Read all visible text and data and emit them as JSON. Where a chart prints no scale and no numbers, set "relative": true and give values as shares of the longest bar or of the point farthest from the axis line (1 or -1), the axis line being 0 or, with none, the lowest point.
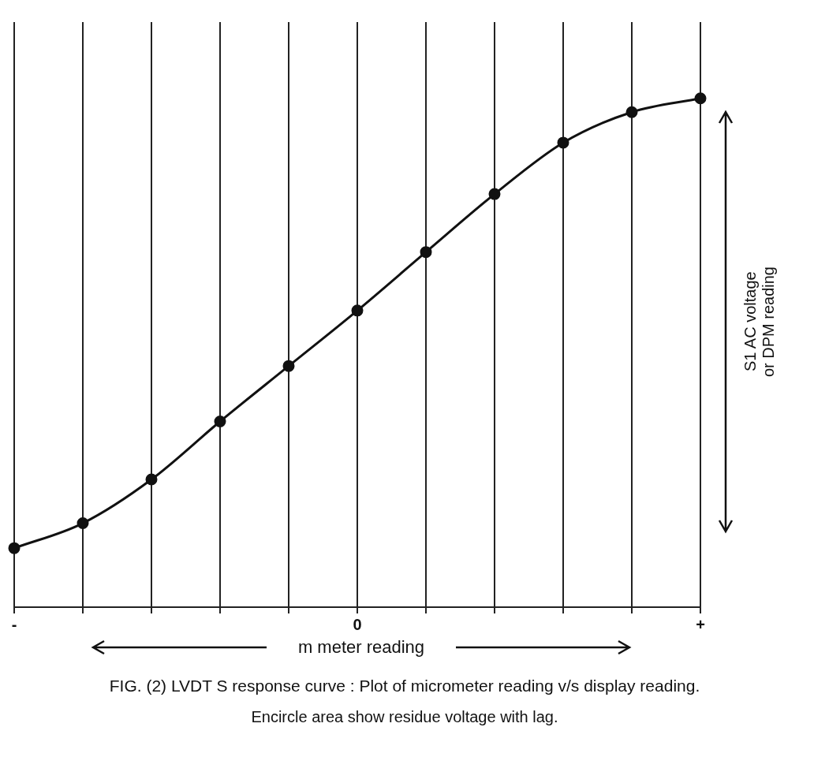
{
  "chart_data": {
    "type": "line",
    "title": "FIG. (2) LVDT S response curve : Plot of micrometer reading v/s display reading.",
    "xlabel": "m meter reading",
    "ylabel": "S1 AC voltage\nor DPM reading",
    "annotations": [
      "Encircle area show residue voltage with lag."
    ],
    "categories": [
      "-",
      null,
      null,
      null,
      null,
      "0",
      null,
      null,
      null,
      null,
      "+"
    ],
    "series": [
      {
        "color": "#111111",
        "values": [
          0.116,
          0.165,
          0.251,
          0.365,
          0.474,
          0.583,
          0.698,
          0.812,
          0.913,
          0.973,
          1
        ]
      }
    ],
    "relative": true,
    "grid": true,
    "legend": false,
    "marker": "circle",
    "line_style": "solid"
  }
}
